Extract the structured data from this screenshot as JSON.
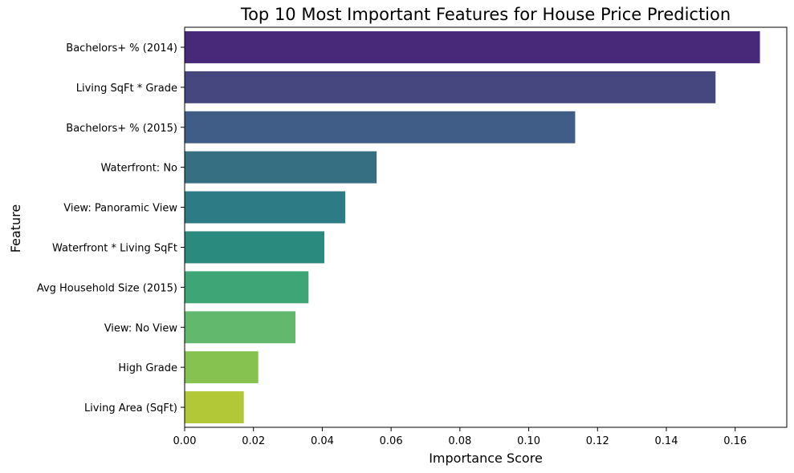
{
  "chart_data": {
    "type": "bar",
    "orientation": "horizontal",
    "title": "Top 10 Most Important Features for House Price Prediction",
    "xlabel": "Importance Score",
    "ylabel": "Feature",
    "xlim": [
      0,
      0.175
    ],
    "xticks": [
      0.0,
      0.02,
      0.04,
      0.06,
      0.08,
      0.1,
      0.12,
      0.14,
      0.16
    ],
    "xtick_labels": [
      "0.00",
      "0.02",
      "0.04",
      "0.06",
      "0.08",
      "0.10",
      "0.12",
      "0.14",
      "0.16"
    ],
    "grid": false,
    "categories": [
      "Bachelors+ % (2014)",
      "Living SqFt * Grade",
      "Bachelors+ % (2015)",
      "Waterfront: No",
      "View: Panoramic View",
      "Waterfront * Living SqFt",
      "Avg Household Size (2015)",
      "View: No View",
      "High Grade",
      "Living Area (SqFt)"
    ],
    "values": [
      0.1672,
      0.1543,
      0.1135,
      0.0558,
      0.0467,
      0.0406,
      0.036,
      0.0322,
      0.0214,
      0.0172
    ],
    "colors": [
      "#482878",
      "#46477f",
      "#3f5d87",
      "#366e82",
      "#2d7b84",
      "#2a8a7e",
      "#3da576",
      "#62b86c",
      "#86c24f",
      "#b2c836"
    ]
  }
}
